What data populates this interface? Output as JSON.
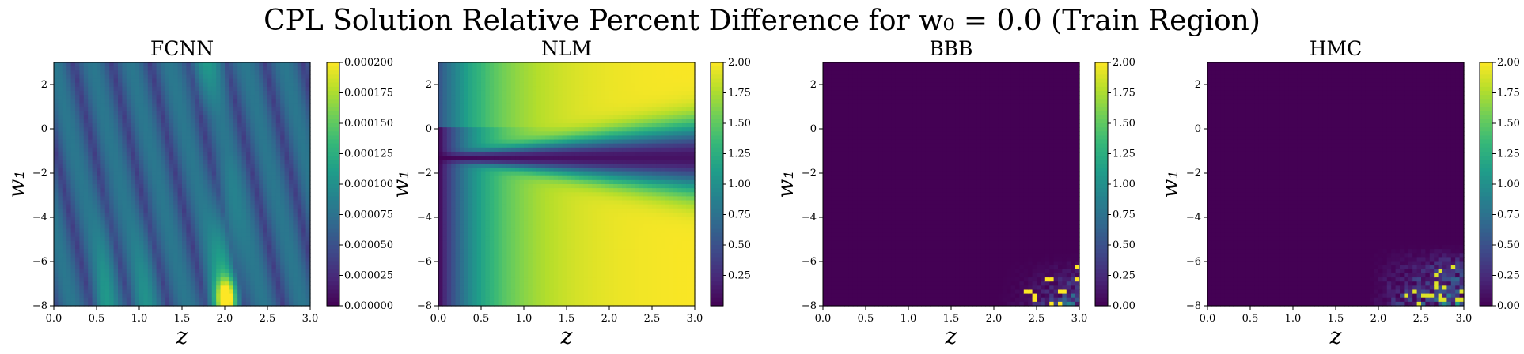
{
  "suptitle": "CPL Solution Relative Percent Difference for w₀ = 0.0 (Train Region)",
  "colors": {
    "viridis": [
      "#440154",
      "#482878",
      "#3e4989",
      "#31688e",
      "#26828e",
      "#1f9e89",
      "#35b779",
      "#6ece58",
      "#b5de2b",
      "#fde725"
    ],
    "axis": "#000000"
  },
  "chart_data": [
    {
      "type": "heatmap",
      "title": "FCNN",
      "xlabel": "z",
      "ylabel": "w₁",
      "xlim": [
        0.0,
        3.0
      ],
      "ylim": [
        -8,
        3
      ],
      "xticks": [
        "0.0",
        "0.5",
        "1.0",
        "1.5",
        "2.0",
        "2.5",
        "3.0"
      ],
      "yticks": [
        "2",
        "0",
        "−2",
        "−4",
        "−6",
        "−8"
      ],
      "colorbar": {
        "range": [
          0.0,
          0.0002
        ],
        "ticks": [
          "0.000200",
          "0.000175",
          "0.000150",
          "0.000125",
          "0.000100",
          "0.000075",
          "0.000050",
          "0.000025",
          "0.000000"
        ]
      },
      "pattern": "fcnn"
    },
    {
      "type": "heatmap",
      "title": "NLM",
      "xlabel": "z",
      "ylabel": "w₁",
      "xlim": [
        0.0,
        3.0
      ],
      "ylim": [
        -8,
        3
      ],
      "xticks": [
        "0.0",
        "0.5",
        "1.0",
        "1.5",
        "2.0",
        "2.5",
        "3.0"
      ],
      "yticks": [
        "2",
        "0",
        "−2",
        "−4",
        "−6",
        "−8"
      ],
      "colorbar": {
        "range": [
          0.0,
          2.0
        ],
        "ticks": [
          "2.00",
          "1.75",
          "1.50",
          "1.25",
          "1.00",
          "0.75",
          "0.50",
          "0.25"
        ]
      },
      "pattern": "nlm"
    },
    {
      "type": "heatmap",
      "title": "BBB",
      "xlabel": "z",
      "ylabel": "w₁",
      "xlim": [
        0.0,
        3.0
      ],
      "ylim": [
        -8,
        3
      ],
      "xticks": [
        "0.0",
        "0.5",
        "1.0",
        "1.5",
        "2.0",
        "2.5",
        "3.0"
      ],
      "yticks": [
        "2",
        "0",
        "−2",
        "−4",
        "−6",
        "−8"
      ],
      "colorbar": {
        "range": [
          0.0,
          2.0
        ],
        "ticks": [
          "2.00",
          "1.75",
          "1.50",
          "1.25",
          "1.00",
          "0.75",
          "0.50",
          "0.25",
          "0.00"
        ]
      },
      "pattern": "bbb"
    },
    {
      "type": "heatmap",
      "title": "HMC",
      "xlabel": "z",
      "ylabel": "w₁",
      "xlim": [
        0.0,
        3.0
      ],
      "ylim": [
        -8,
        3
      ],
      "xticks": [
        "0.0",
        "0.5",
        "1.0",
        "1.5",
        "2.0",
        "2.5",
        "3.0"
      ],
      "yticks": [
        "2",
        "0",
        "−2",
        "−4",
        "−6",
        "−8"
      ],
      "colorbar": {
        "range": [
          0.0,
          2.0
        ],
        "ticks": [
          "2.00",
          "1.75",
          "1.50",
          "1.25",
          "1.00",
          "0.75",
          "0.50",
          "0.25",
          "0.00"
        ]
      },
      "pattern": "hmc"
    }
  ]
}
